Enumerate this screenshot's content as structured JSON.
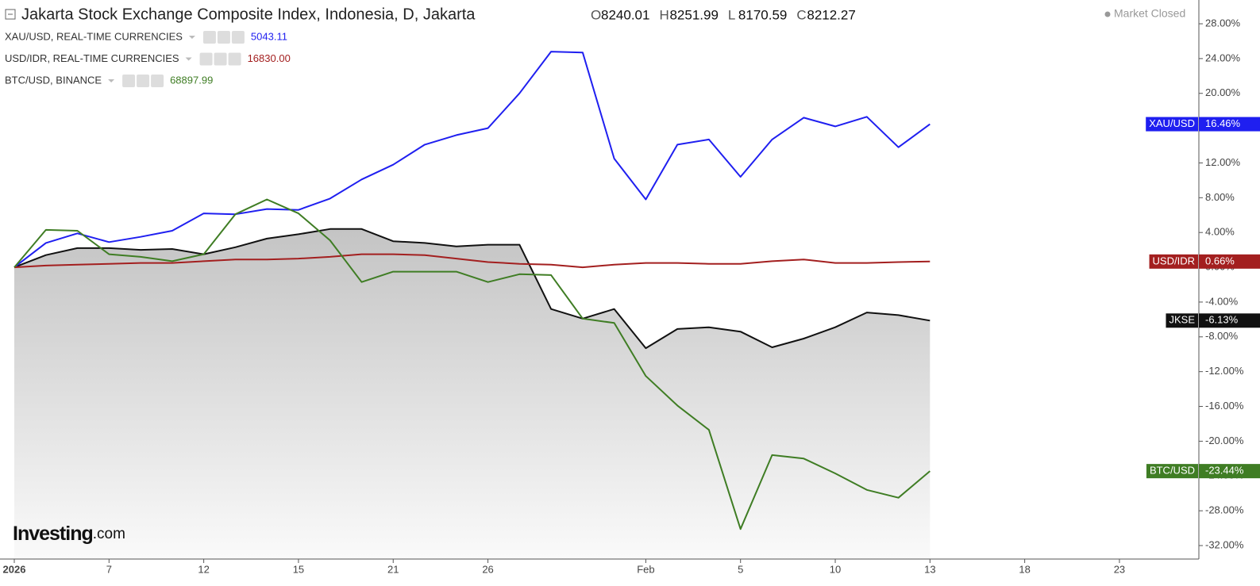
{
  "chart_data": {
    "type": "line",
    "title": "Jakarta Stock Exchange Composite Index, Indonesia, D, Jakarta",
    "ohlc": [
      {
        "label": "O",
        "value": "8240.01"
      },
      {
        "label": "H",
        "value": "8251.99"
      },
      {
        "label": "L",
        "value": "8170.59"
      },
      {
        "label": "C",
        "value": "8212.27"
      }
    ],
    "status": "Market Closed",
    "watermark": [
      "Investing",
      ".com"
    ],
    "categories": [
      "2026",
      null,
      null,
      "7",
      null,
      null,
      "12",
      null,
      null,
      "15",
      null,
      null,
      "21",
      null,
      null,
      "26",
      null,
      null,
      null,
      null,
      "Feb",
      null,
      null,
      "5",
      null,
      null,
      "10",
      null,
      null,
      "13",
      null,
      null,
      "18",
      null,
      null,
      "23",
      null,
      null
    ],
    "ylim": [
      -33,
      30
    ],
    "yticks": [
      {
        "value": 28,
        "label": "28.00%"
      },
      {
        "value": 24,
        "label": "24.00%"
      },
      {
        "value": 20,
        "label": "20.00%"
      },
      {
        "value": 16,
        "label": "16.00%"
      },
      {
        "value": 12,
        "label": "12.00%"
      },
      {
        "value": 8,
        "label": "8.00%"
      },
      {
        "value": 4,
        "label": "4.00%"
      },
      {
        "value": 0,
        "label": "0.00%"
      },
      {
        "value": -4,
        "label": "-4.00%"
      },
      {
        "value": -8,
        "label": "-8.00%"
      },
      {
        "value": -12,
        "label": "-12.00%"
      },
      {
        "value": -16,
        "label": "-16.00%"
      },
      {
        "value": -20,
        "label": "-20.00%"
      },
      {
        "value": -24,
        "label": "-24.00%"
      },
      {
        "value": -28,
        "label": "-28.00%"
      },
      {
        "value": -32,
        "label": "-32.00%"
      }
    ],
    "grid": false,
    "series": [
      {
        "name": "JKSE",
        "color": "#111111",
        "fill": true,
        "values": [
          0,
          1.4,
          2.2,
          2.2,
          2.0,
          2.1,
          1.5,
          2.3,
          3.3,
          3.8,
          4.4,
          4.4,
          3.0,
          2.8,
          2.4,
          2.6,
          2.6,
          -4.8,
          -5.9,
          -4.8,
          -9.3,
          -7.1,
          -6.9,
          -7.4,
          -9.2,
          -8.2,
          -6.9,
          -5.2,
          -5.5,
          -6.13,
          null,
          null,
          null,
          null,
          null,
          null,
          null,
          null
        ],
        "value_labels": [
          null,
          null,
          null,
          null,
          null,
          null,
          null,
          null,
          null,
          null,
          null,
          null,
          null,
          null,
          null,
          null,
          null,
          null,
          null,
          null,
          null,
          null,
          null,
          null,
          null,
          null,
          null,
          null,
          null,
          "-6.13%",
          null,
          null,
          null,
          null,
          null,
          null,
          null,
          null
        ]
      },
      {
        "name": "XAU/USD",
        "legend": "XAU/USD, REAL-TIME CURRENCIES",
        "price": "5043.11",
        "color": "#1f1ff0",
        "fill": false,
        "values": [
          0,
          2.8,
          3.9,
          2.9,
          3.5,
          4.2,
          6.2,
          6.1,
          6.7,
          6.6,
          7.9,
          10.1,
          11.8,
          14.1,
          15.2,
          16.0,
          20.0,
          24.8,
          24.7,
          12.5,
          7.8,
          14.1,
          14.7,
          10.4,
          14.7,
          17.2,
          16.2,
          17.3,
          13.8,
          16.46,
          null,
          null,
          null,
          null,
          null,
          null,
          null,
          null
        ],
        "value_labels": [
          null,
          null,
          null,
          null,
          null,
          null,
          null,
          null,
          null,
          null,
          null,
          null,
          null,
          null,
          null,
          null,
          null,
          null,
          null,
          null,
          null,
          null,
          null,
          null,
          null,
          null,
          null,
          null,
          null,
          "16.46%",
          null,
          null,
          null,
          null,
          null,
          null,
          null,
          null
        ]
      },
      {
        "name": "USD/IDR",
        "legend": "USD/IDR, REAL-TIME CURRENCIES",
        "price": "16830.00",
        "color": "#a31f1f",
        "fill": false,
        "values": [
          0,
          0.2,
          0.3,
          0.4,
          0.5,
          0.5,
          0.7,
          0.9,
          0.9,
          1.0,
          1.2,
          1.5,
          1.5,
          1.4,
          1.0,
          0.6,
          0.4,
          0.3,
          0,
          0.3,
          0.5,
          0.5,
          0.4,
          0.4,
          0.7,
          0.9,
          0.5,
          0.5,
          0.6,
          0.66,
          null,
          null,
          null,
          null,
          null,
          null,
          null,
          null
        ],
        "value_labels": [
          null,
          null,
          null,
          null,
          null,
          null,
          null,
          null,
          null,
          null,
          null,
          null,
          null,
          null,
          null,
          null,
          null,
          null,
          null,
          null,
          null,
          null,
          null,
          null,
          null,
          null,
          null,
          null,
          null,
          "0.66%",
          null,
          null,
          null,
          null,
          null,
          null,
          null,
          null
        ]
      },
      {
        "name": "BTC/USD",
        "legend": "BTC/USD, BINANCE",
        "price": "68897.99",
        "color": "#3f7d24",
        "fill": false,
        "values": [
          0,
          4.3,
          4.2,
          1.5,
          1.2,
          0.7,
          1.5,
          6.1,
          7.8,
          6.2,
          3.1,
          -1.7,
          -0.5,
          -0.5,
          -0.5,
          -1.7,
          -0.8,
          -0.9,
          -5.9,
          -6.4,
          -12.5,
          -15.9,
          -18.7,
          -30.1,
          -21.6,
          -22.0,
          -23.7,
          -25.6,
          -26.5,
          -23.44,
          null,
          null,
          null,
          null,
          null,
          null,
          null,
          null
        ],
        "value_labels": [
          null,
          null,
          null,
          null,
          null,
          null,
          null,
          null,
          null,
          null,
          null,
          null,
          null,
          null,
          null,
          null,
          null,
          null,
          null,
          null,
          null,
          null,
          null,
          null,
          null,
          null,
          null,
          null,
          null,
          "-23.44%",
          null,
          null,
          null,
          null,
          null,
          null,
          null,
          null
        ]
      }
    ]
  }
}
